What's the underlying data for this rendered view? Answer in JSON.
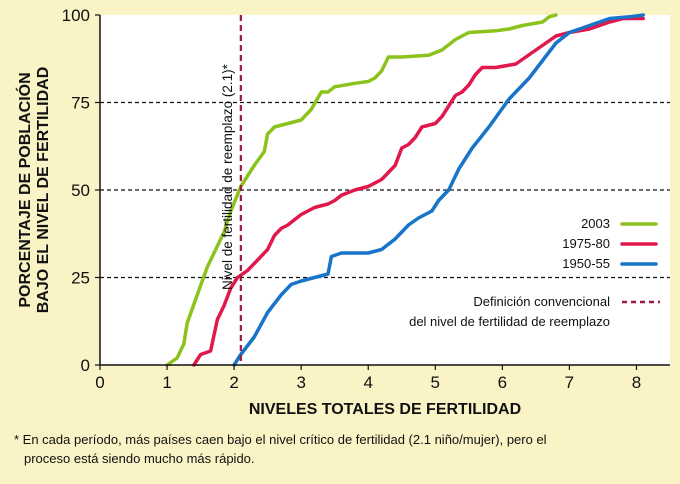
{
  "chart_data": {
    "type": "line",
    "xlabel": "NIVELES TOTALES DE FERTILIDAD",
    "ylabel_lines": [
      "PORCENTAJE DE POBLACIÓN",
      "BAJO EL NIVEL DE FERTILIDAD"
    ],
    "xlim": [
      0,
      8.5
    ],
    "ylim": [
      0,
      100
    ],
    "x_ticks": [
      "0",
      "1",
      "2",
      "3",
      "4",
      "5",
      "6",
      "7",
      "8"
    ],
    "y_ticks": [
      "0",
      "25",
      "50",
      "75",
      "100"
    ],
    "y_grid_dashed": [
      25,
      50,
      75
    ],
    "series": [
      {
        "name": "2003",
        "color": "#8cc21c",
        "points": [
          [
            1.0,
            0
          ],
          [
            1.15,
            2
          ],
          [
            1.25,
            6
          ],
          [
            1.3,
            12
          ],
          [
            1.45,
            20
          ],
          [
            1.6,
            28
          ],
          [
            1.75,
            34
          ],
          [
            1.85,
            38
          ],
          [
            1.95,
            44
          ],
          [
            2.1,
            51
          ],
          [
            2.3,
            57
          ],
          [
            2.45,
            61
          ],
          [
            2.5,
            66
          ],
          [
            2.6,
            68
          ],
          [
            2.8,
            69
          ],
          [
            3.0,
            70
          ],
          [
            3.15,
            73
          ],
          [
            3.3,
            78
          ],
          [
            3.4,
            78
          ],
          [
            3.5,
            79.5
          ],
          [
            3.8,
            80.5
          ],
          [
            4.0,
            81
          ],
          [
            4.1,
            82
          ],
          [
            4.2,
            84
          ],
          [
            4.3,
            88
          ],
          [
            4.5,
            88
          ],
          [
            4.9,
            88.5
          ],
          [
            5.1,
            90
          ],
          [
            5.3,
            93
          ],
          [
            5.5,
            95
          ],
          [
            5.9,
            95.5
          ],
          [
            6.1,
            96
          ],
          [
            6.3,
            97
          ],
          [
            6.6,
            98
          ],
          [
            6.7,
            99.5
          ],
          [
            6.8,
            100
          ]
        ]
      },
      {
        "name": "1975-80",
        "color": "#e0184c",
        "points": [
          [
            1.4,
            0
          ],
          [
            1.5,
            3
          ],
          [
            1.65,
            4
          ],
          [
            1.75,
            13
          ],
          [
            1.85,
            17
          ],
          [
            1.95,
            22
          ],
          [
            2.05,
            25
          ],
          [
            2.2,
            27
          ],
          [
            2.35,
            30
          ],
          [
            2.5,
            33
          ],
          [
            2.6,
            37
          ],
          [
            2.7,
            39
          ],
          [
            2.8,
            40
          ],
          [
            3.0,
            43
          ],
          [
            3.2,
            45
          ],
          [
            3.4,
            46
          ],
          [
            3.5,
            47
          ],
          [
            3.6,
            48.5
          ],
          [
            3.8,
            50
          ],
          [
            4.0,
            51
          ],
          [
            4.2,
            53
          ],
          [
            4.4,
            57
          ],
          [
            4.5,
            62
          ],
          [
            4.6,
            63
          ],
          [
            4.7,
            65
          ],
          [
            4.8,
            68
          ],
          [
            5.0,
            69
          ],
          [
            5.1,
            71
          ],
          [
            5.2,
            74
          ],
          [
            5.3,
            77
          ],
          [
            5.4,
            78
          ],
          [
            5.5,
            80
          ],
          [
            5.6,
            83
          ],
          [
            5.7,
            85
          ],
          [
            5.9,
            85
          ],
          [
            6.2,
            86
          ],
          [
            6.5,
            90
          ],
          [
            6.8,
            94
          ],
          [
            7.0,
            95
          ],
          [
            7.3,
            96
          ],
          [
            7.6,
            98
          ],
          [
            7.8,
            99
          ],
          [
            8.0,
            99
          ],
          [
            8.1,
            99
          ]
        ]
      },
      {
        "name": "1950-55",
        "color": "#1774c8",
        "points": [
          [
            2.0,
            0
          ],
          [
            2.1,
            3
          ],
          [
            2.3,
            8
          ],
          [
            2.5,
            15
          ],
          [
            2.7,
            20
          ],
          [
            2.85,
            23
          ],
          [
            3.0,
            24
          ],
          [
            3.2,
            25
          ],
          [
            3.4,
            26
          ],
          [
            3.45,
            31
          ],
          [
            3.6,
            32
          ],
          [
            4.0,
            32
          ],
          [
            4.2,
            33
          ],
          [
            4.4,
            36
          ],
          [
            4.6,
            40
          ],
          [
            4.75,
            42
          ],
          [
            4.95,
            44
          ],
          [
            5.05,
            47
          ],
          [
            5.2,
            50
          ],
          [
            5.35,
            56
          ],
          [
            5.55,
            62
          ],
          [
            5.8,
            68
          ],
          [
            5.95,
            72
          ],
          [
            6.1,
            76
          ],
          [
            6.2,
            78
          ],
          [
            6.4,
            82
          ],
          [
            6.6,
            87
          ],
          [
            6.8,
            92
          ],
          [
            7.0,
            95
          ],
          [
            7.3,
            97
          ],
          [
            7.6,
            99
          ],
          [
            7.9,
            99.5
          ],
          [
            8.1,
            100
          ]
        ]
      }
    ],
    "reference_line": {
      "x": 2.1,
      "color": "#a0173f",
      "label": "Nivel de fertilidad de reemplazo (2.1)*"
    },
    "legend": {
      "placement": "bottom-right",
      "items": [
        {
          "label": "2003",
          "color": "#8cc21c"
        },
        {
          "label": "1975-80",
          "color": "#e0184c"
        },
        {
          "label": "1950-55",
          "color": "#1774c8"
        }
      ],
      "definition_lines": [
        "Definición convencional",
        "del nivel de fertilidad de reemplazo"
      ],
      "definition_color": "#a0173f"
    }
  },
  "footnote": {
    "line1": "* En cada período, más países caen bajo el nivel crítico de fertilidad (2.1 niño/mujer), pero el",
    "line2": "proceso está siendo mucho más rápido."
  }
}
